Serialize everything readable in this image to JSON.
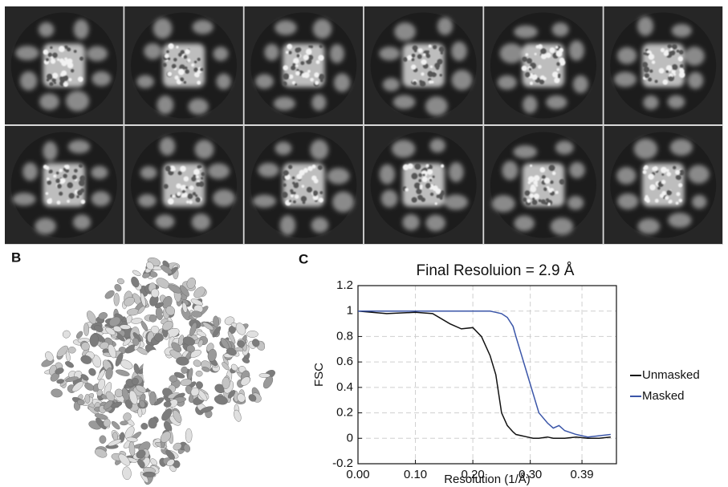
{
  "panel_labels": {
    "b": "B",
    "c": "C"
  },
  "chart_data": {
    "type": "line",
    "title": "Final Resoluion = 2.9 Å",
    "x_label": "Resolution (1/Å)",
    "y_label": "FSC",
    "x": [
      0,
      0.05,
      0.1,
      0.13,
      0.16,
      0.18,
      0.2,
      0.215,
      0.23,
      0.24,
      0.25,
      0.26,
      0.27,
      0.275,
      0.285,
      0.295,
      0.305,
      0.315,
      0.33,
      0.34,
      0.35,
      0.36,
      0.38,
      0.4,
      0.42,
      0.44
    ],
    "series": [
      {
        "name": "Unmasked",
        "color": "#111111",
        "values": [
          1,
          0.98,
          0.99,
          0.98,
          0.9,
          0.86,
          0.87,
          0.8,
          0.65,
          0.5,
          0.2,
          0.1,
          0.05,
          0.03,
          0.02,
          0.01,
          0,
          0,
          0.01,
          0,
          0,
          0,
          0.01,
          0,
          0,
          0.01
        ]
      },
      {
        "name": "Masked",
        "color": "#3a55a8",
        "values": [
          1,
          1,
          1,
          1,
          1,
          1,
          1,
          1,
          1,
          0.99,
          0.98,
          0.95,
          0.88,
          0.8,
          0.65,
          0.5,
          0.35,
          0.2,
          0.12,
          0.08,
          0.1,
          0.06,
          0.03,
          0.01,
          0.02,
          0.03
        ]
      }
    ],
    "xlim": [
      0,
      0.45
    ],
    "xticks": [
      {
        "value": 0,
        "label": "0.00"
      },
      {
        "value": 0.1,
        "label": "0.10"
      },
      {
        "value": 0.2,
        "label": "0.20"
      },
      {
        "value": 0.3,
        "label": "0.30"
      },
      0.39
    ],
    "ylim": [
      -0.2,
      1.2
    ],
    "yticks": [
      -0.2,
      0,
      0.2,
      0.4,
      0.6,
      0.8,
      1,
      1.2
    ],
    "grid": true,
    "legend": "right"
  }
}
